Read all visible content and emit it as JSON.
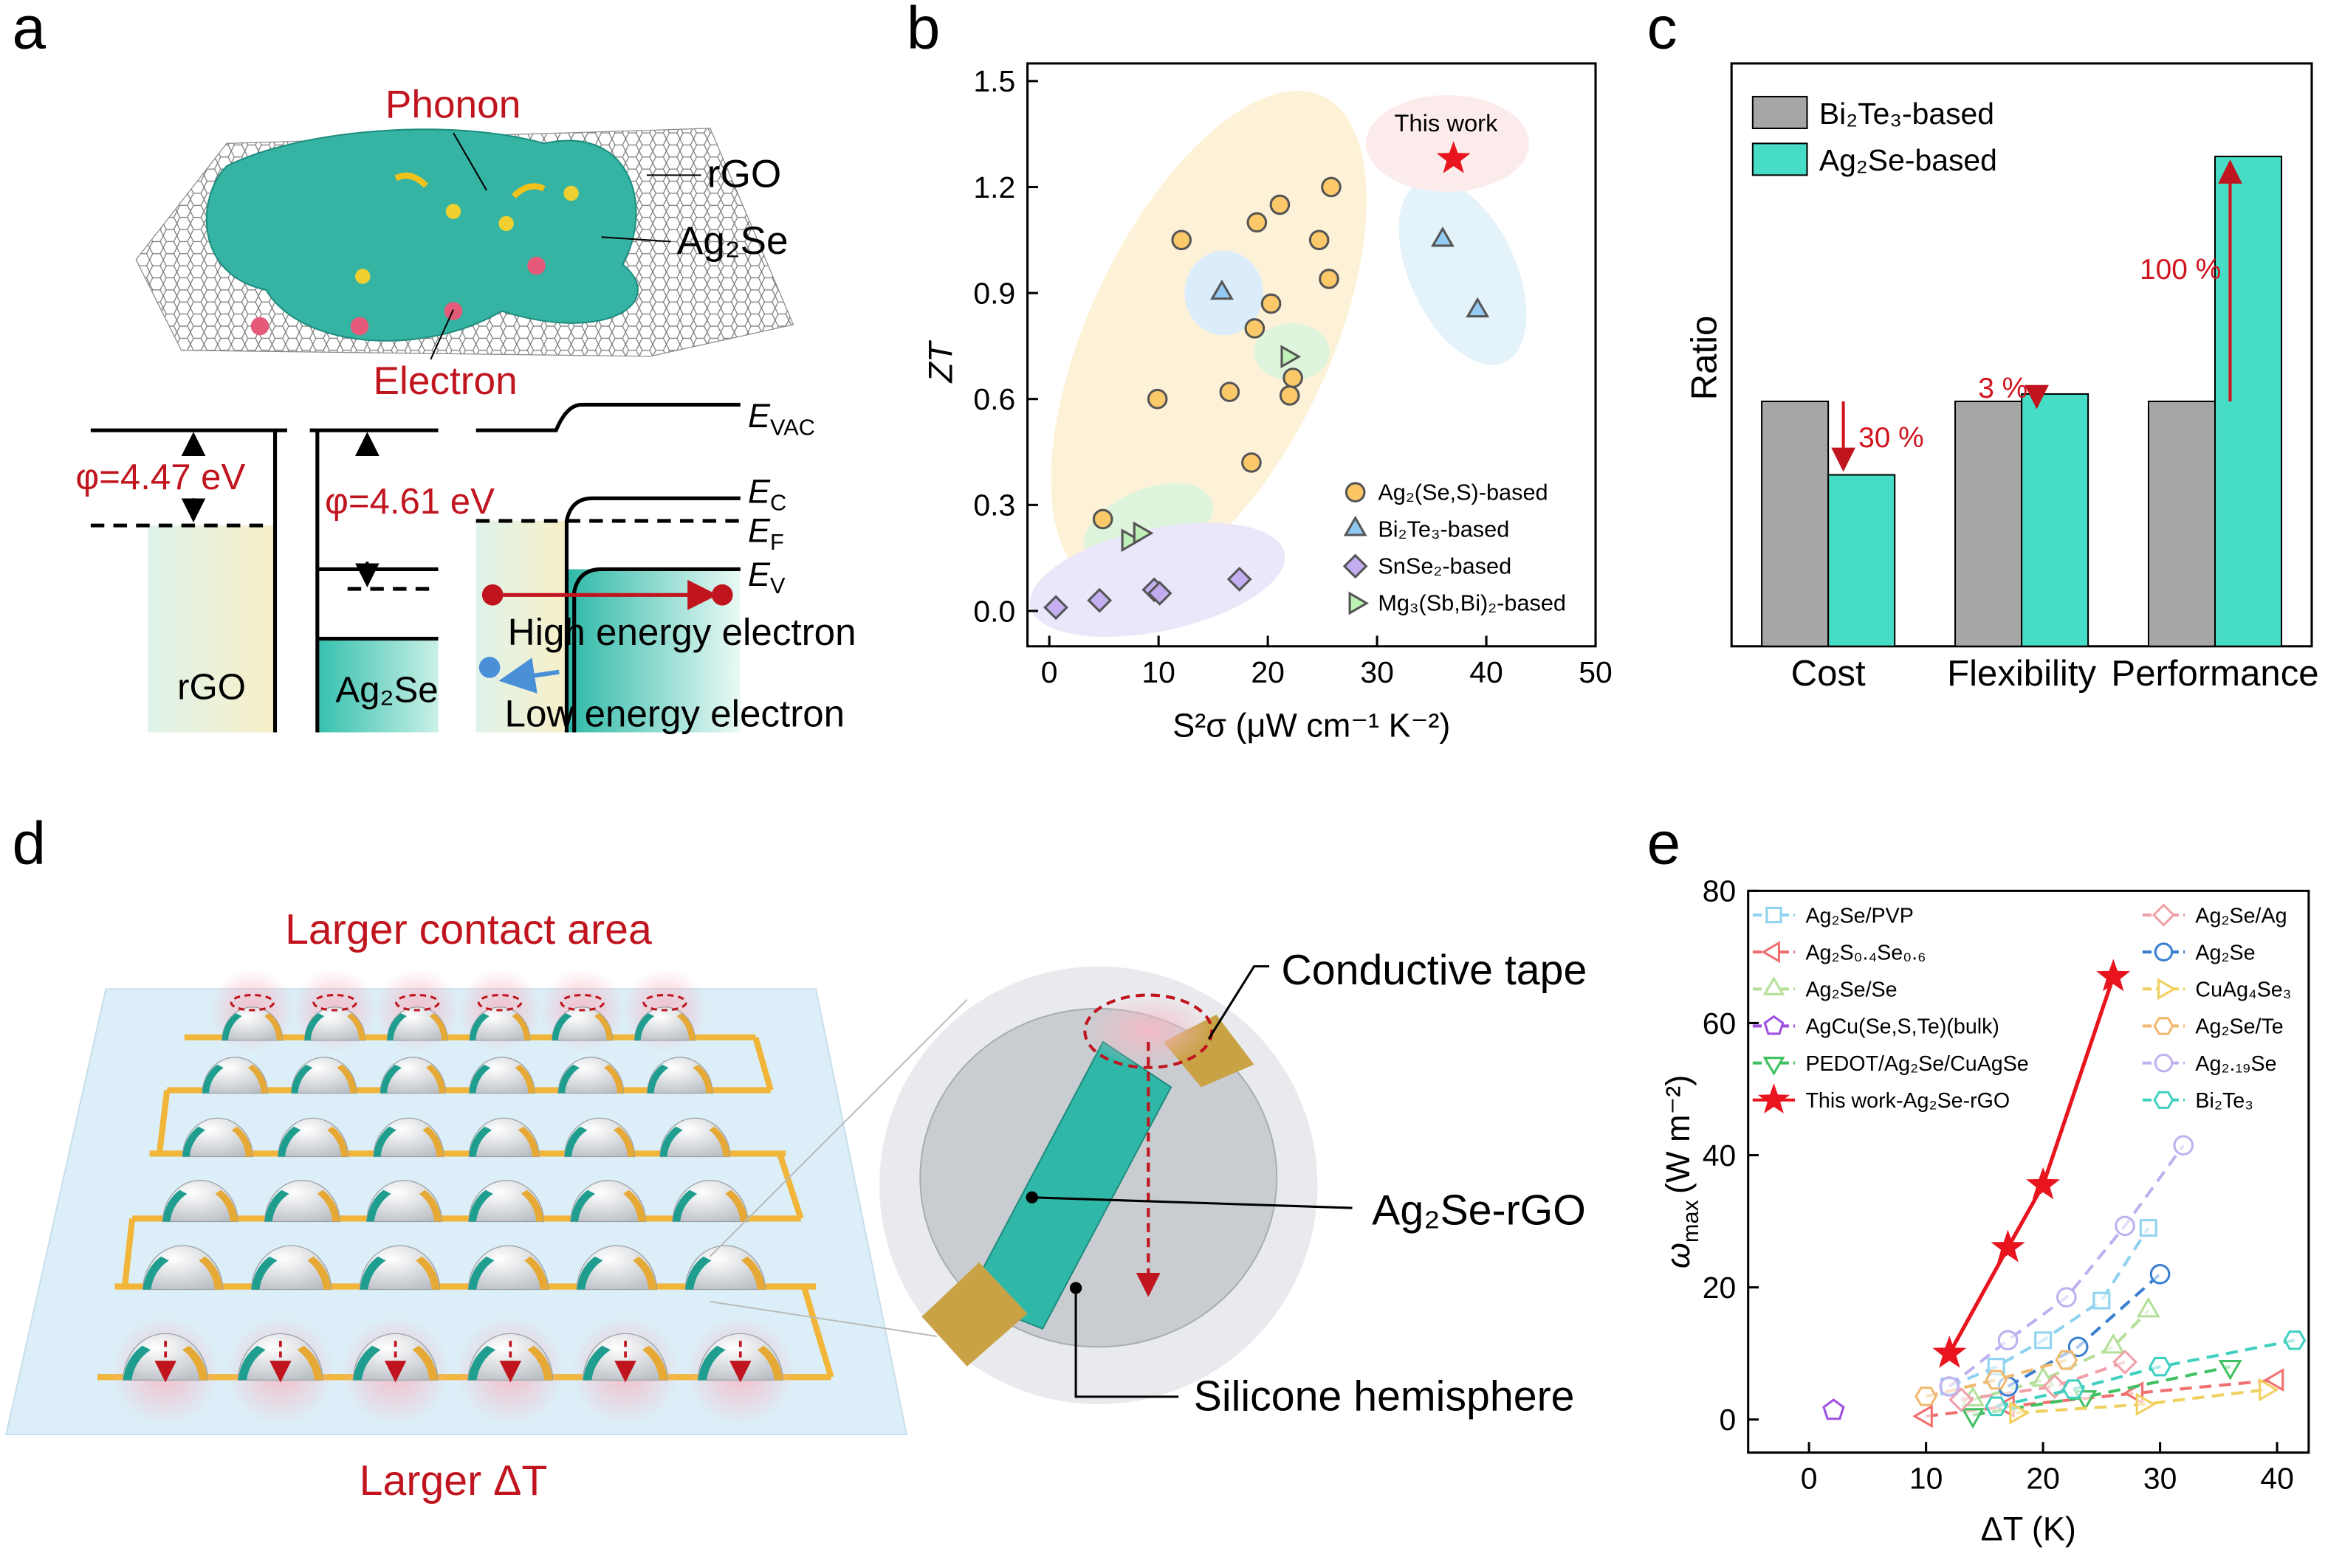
{
  "panel_labels": [
    "a",
    "b",
    "c",
    "d",
    "e"
  ],
  "diagram_a": {
    "labels": {
      "phonon": "Phonon",
      "rgo": "rGO",
      "ag2se": "Ag₂Se",
      "electron": "Electron"
    },
    "work_functions": [
      "φ=4.47 eV",
      "φ=4.61 eV"
    ],
    "levels": [
      {
        "symbol": "E",
        "sub": "VAC"
      },
      {
        "symbol": "E",
        "sub": "C"
      },
      {
        "symbol": "E",
        "sub": "F"
      },
      {
        "symbol": "E",
        "sub": "V"
      }
    ],
    "electrons": [
      "High energy electron",
      "Low energy electron"
    ],
    "materials": [
      "rGO",
      "Ag₂Se"
    ]
  },
  "diagram_d": {
    "top_label": "Larger contact area",
    "bottom_label": "Larger ΔT",
    "callouts": [
      "Conductive tape",
      "Ag₂Se-rGO",
      "Silicone hemisphere"
    ]
  },
  "chart_data": [
    {
      "type": "scatter",
      "x_label": "S²σ (μW cm⁻¹ K⁻²)",
      "y_label": "ZT",
      "xlim": [
        -2,
        50
      ],
      "ylim": [
        -0.1,
        1.55
      ],
      "xticks": [
        0,
        10,
        20,
        30,
        40,
        50
      ],
      "yticks": [
        {
          "value": 0,
          "label": "0.0"
        },
        0.3,
        0.6,
        0.9,
        1.2,
        1.5
      ],
      "series": [
        {
          "name": "Ag₂(Se,S)-based",
          "color": "#fbc663",
          "marker": "circle",
          "x": [
            4.9,
            9.9,
            12.1,
            16.5,
            18.5,
            18.8,
            19,
            20.3,
            21.1,
            22,
            22.3,
            24.7,
            25.6,
            25.8
          ],
          "values": [
            0.26,
            0.6,
            1.05,
            0.62,
            0.42,
            0.8,
            1.1,
            0.87,
            1.15,
            0.61,
            0.66,
            1.05,
            0.94,
            1.2
          ]
        },
        {
          "name": "Bi₂Te₃-based",
          "color": "#8ec8f2",
          "marker": "triangle",
          "x": [
            15.8,
            36,
            39.2
          ],
          "values": [
            0.9,
            1.05,
            0.85
          ]
        },
        {
          "name": "SnSe₂-based",
          "color": "#c2adf0",
          "marker": "diamond",
          "x": [
            0.6,
            4.6,
            9.6,
            10.1,
            17.4
          ],
          "values": [
            0.01,
            0.03,
            0.06,
            0.05,
            0.09
          ]
        },
        {
          "name": "Mg₃(Sb,Bi)₂-based",
          "color": "#bdf0b5",
          "marker": "triangle-right",
          "x": [
            7.2,
            8.3,
            21.8
          ],
          "values": [
            0.2,
            0.22,
            0.72
          ]
        }
      ],
      "highlight": {
        "label": "This work",
        "x": 37,
        "value": 1.28,
        "color": "#e8141e",
        "marker": "star"
      }
    },
    {
      "type": "bar",
      "y_label": "Ratio",
      "categories": [
        "Cost",
        "Flexibility",
        "Performance"
      ],
      "ylim": [
        0,
        2.38
      ],
      "series": [
        {
          "name": "Bi₂Te₃-based",
          "color": "#a6a6a6",
          "values": [
            1,
            1,
            1
          ]
        },
        {
          "name": "Ag₂Se-based",
          "color": "#46dcc6",
          "values": [
            0.7,
            1.03,
            2.0
          ]
        }
      ],
      "annotations": [
        "30 %",
        "3 %",
        "100 %"
      ],
      "annotation_color": "#d0141e"
    },
    {
      "type": "line",
      "x_label": "ΔT (K)",
      "y_label": {
        "symbol": "ω",
        "sub": "max",
        "unit": "(W m⁻²)"
      },
      "xlim": [
        -5.2,
        42.7
      ],
      "ylim": [
        -5,
        80
      ],
      "xticks": [
        0,
        10,
        20,
        30,
        40
      ],
      "yticks": [
        0,
        20,
        40,
        60,
        80
      ],
      "series": [
        {
          "name": "Ag₂Se/PVP",
          "color": "#8fd3f0",
          "marker": "square",
          "x": [
            12,
            16,
            20,
            25,
            29
          ],
          "values": [
            5,
            8,
            12,
            18,
            29
          ]
        },
        {
          "name": "Ag₂S₀.₄Se₀.₆",
          "color": "#f07070",
          "marker": "triangle-left",
          "x": [
            10,
            17,
            28,
            40
          ],
          "values": [
            0.5,
            2,
            4,
            6
          ]
        },
        {
          "name": "Ag₂Se/Se",
          "color": "#b5e09a",
          "marker": "triangle",
          "x": [
            14,
            20,
            26,
            29
          ],
          "values": [
            3,
            6,
            11,
            16.5
          ]
        },
        {
          "name": "AgCu(Se,S,Te)(bulk)",
          "color": "#a050e0",
          "marker": "pentagon",
          "x": [
            2.1
          ],
          "values": [
            1.4
          ]
        },
        {
          "name": "PEDOT/Ag₂Se/CuAgSe",
          "color": "#40c060",
          "marker": "triangle-down",
          "x": [
            14,
            23.6,
            36
          ],
          "values": [
            0.7,
            3.4,
            8
          ]
        },
        {
          "name": "This work-Ag₂Se-rGO",
          "color": "#e8141e",
          "marker": "star",
          "solid": true,
          "x": [
            12,
            17,
            20,
            26
          ],
          "values": [
            10,
            26,
            35.5,
            67
          ]
        },
        {
          "name": "Ag₂Se/Ag",
          "color": "#f0a0a8",
          "marker": "diamond",
          "x": [
            13,
            21,
            27
          ],
          "values": [
            3,
            5,
            8.7
          ]
        },
        {
          "name": "Ag₂Se",
          "color": "#3a80d0",
          "marker": "circle",
          "x": [
            17,
            23,
            30
          ],
          "values": [
            5,
            11,
            22
          ]
        },
        {
          "name": "CuAg₄Se₃",
          "color": "#f0d060",
          "marker": "triangle-right",
          "x": [
            17.7,
            28.5,
            39
          ],
          "values": [
            1,
            2.3,
            4.5
          ]
        },
        {
          "name": "Ag₂Se/Te",
          "color": "#f0b870",
          "marker": "hexagon",
          "x": [
            10,
            16,
            22
          ],
          "values": [
            3.5,
            6,
            9
          ]
        },
        {
          "name": "Ag₂.₁₉Se",
          "color": "#c0b0f0",
          "marker": "circle",
          "x": [
            12,
            17,
            22,
            27,
            32
          ],
          "values": [
            5,
            12,
            18.5,
            29.3,
            41.5
          ]
        },
        {
          "name": "Bi₂Te₃",
          "color": "#40d0c0",
          "marker": "hexagon",
          "x": [
            16,
            22.6,
            30,
            41.5
          ],
          "values": [
            2,
            4.6,
            8,
            12
          ]
        }
      ]
    }
  ]
}
